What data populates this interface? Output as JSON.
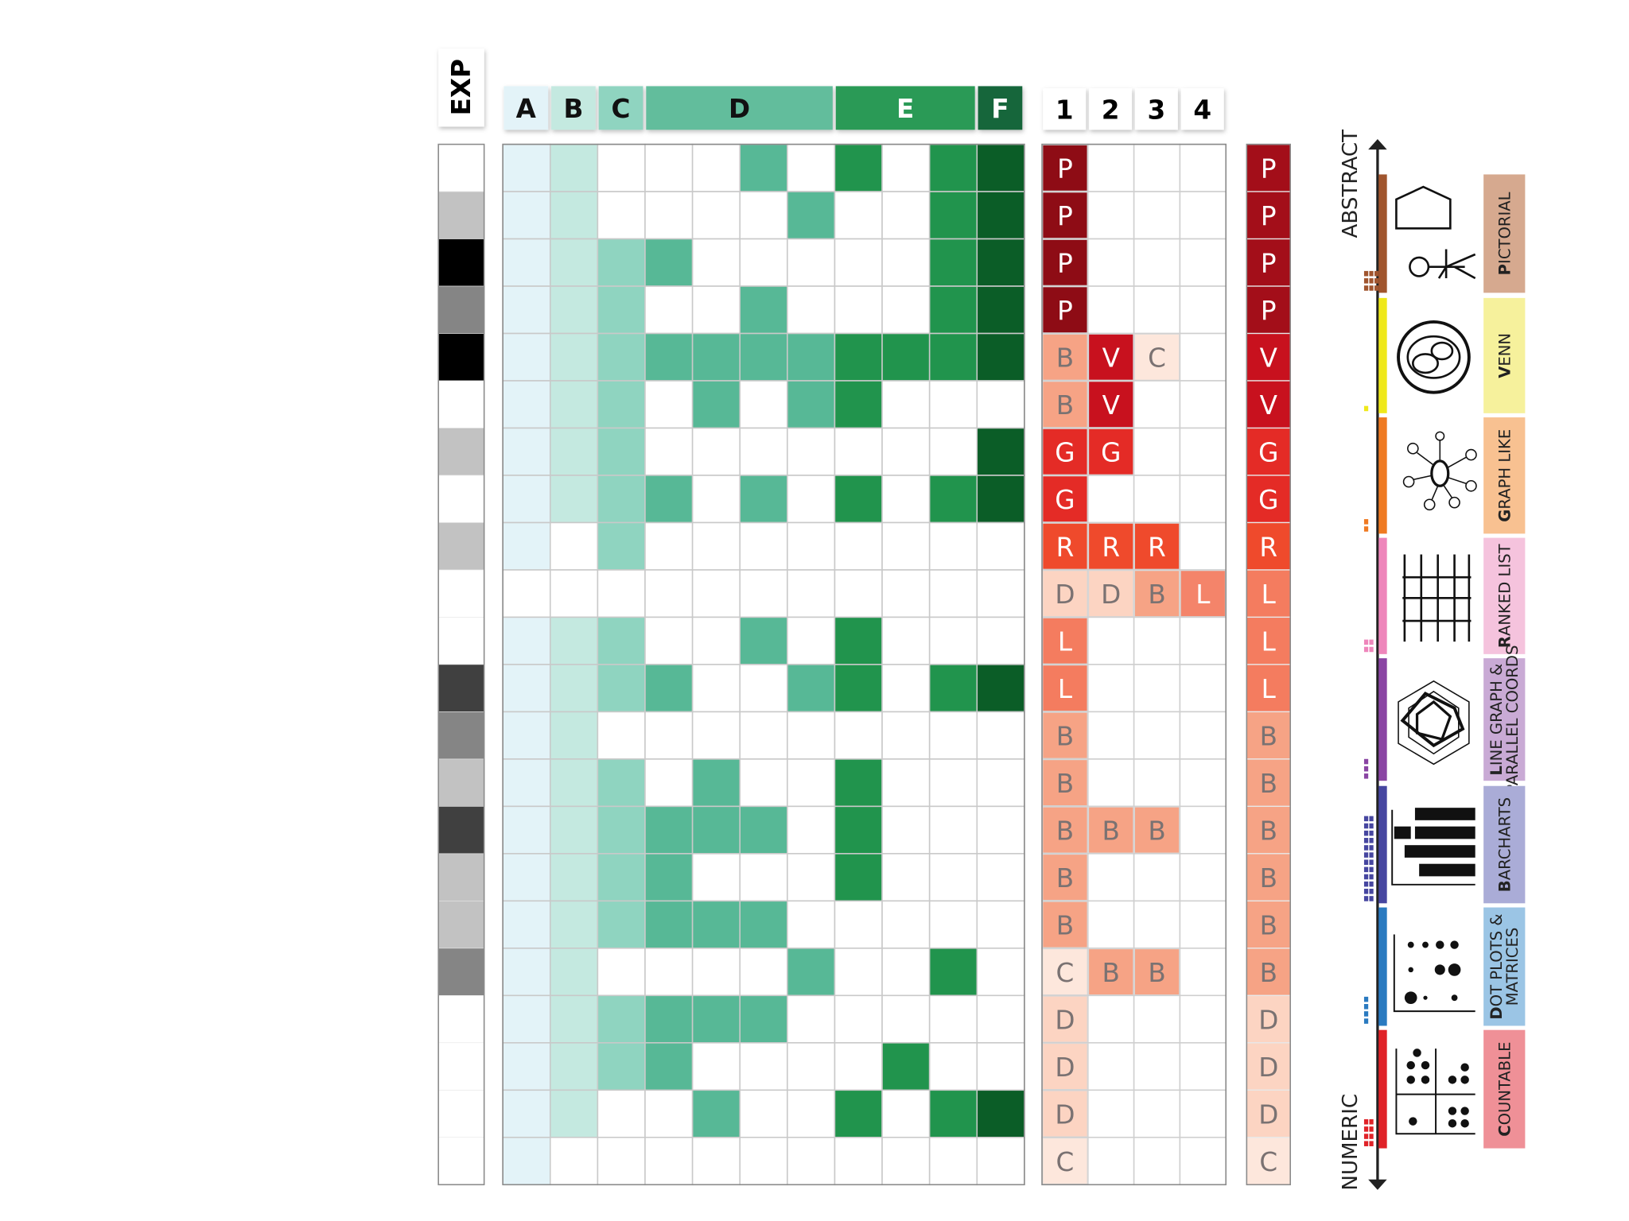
{
  "headers": {
    "exp": "EXP",
    "groups": [
      "A",
      "B",
      "C",
      "D",
      "E",
      "F"
    ],
    "codes": [
      "1",
      "2",
      "3",
      "4"
    ]
  },
  "rows": [
    {
      "exp": "#ffffff",
      "cells": [
        1,
        1,
        0,
        0,
        0,
        1,
        0,
        1,
        0,
        1,
        1
      ],
      "codes": [
        "P"
      ],
      "final": "P"
    },
    {
      "exp": "#c2c2c2",
      "cells": [
        1,
        1,
        0,
        0,
        0,
        0,
        1,
        0,
        0,
        1,
        1
      ],
      "codes": [
        "P"
      ],
      "final": "P"
    },
    {
      "exp": "#000000",
      "cells": [
        1,
        1,
        1,
        1,
        0,
        0,
        0,
        0,
        0,
        1,
        1
      ],
      "codes": [
        "P"
      ],
      "final": "P"
    },
    {
      "exp": "#858585",
      "cells": [
        1,
        1,
        1,
        0,
        0,
        1,
        0,
        0,
        0,
        1,
        1
      ],
      "codes": [
        "P"
      ],
      "final": "P"
    },
    {
      "exp": "#000000",
      "cells": [
        1,
        1,
        1,
        1,
        1,
        1,
        1,
        1,
        1,
        1,
        1
      ],
      "codes": [
        "B",
        "V",
        "C"
      ],
      "final": "V"
    },
    {
      "exp": "#ffffff",
      "cells": [
        1,
        1,
        1,
        0,
        1,
        0,
        1,
        1,
        0,
        0,
        0
      ],
      "codes": [
        "B",
        "V"
      ],
      "final": "V"
    },
    {
      "exp": "#c2c2c2",
      "cells": [
        1,
        1,
        1,
        0,
        0,
        0,
        0,
        0,
        0,
        0,
        1
      ],
      "codes": [
        "G",
        "G"
      ],
      "final": "G"
    },
    {
      "exp": "#ffffff",
      "cells": [
        1,
        1,
        1,
        1,
        0,
        1,
        0,
        1,
        0,
        1,
        1
      ],
      "codes": [
        "G"
      ],
      "final": "G"
    },
    {
      "exp": "#c2c2c2",
      "cells": [
        1,
        0,
        1,
        0,
        0,
        0,
        0,
        0,
        0,
        0,
        0
      ],
      "codes": [
        "R",
        "R",
        "R"
      ],
      "final": "R"
    },
    {
      "exp": "#ffffff",
      "cells": [
        0,
        0,
        0,
        0,
        0,
        0,
        0,
        0,
        0,
        0,
        0
      ],
      "codes": [
        "D",
        "D",
        "B",
        "L"
      ],
      "final": "L"
    },
    {
      "exp": "#ffffff",
      "cells": [
        1,
        1,
        1,
        0,
        0,
        1,
        0,
        1,
        0,
        0,
        0
      ],
      "codes": [
        "L"
      ],
      "final": "L"
    },
    {
      "exp": "#404040",
      "cells": [
        1,
        1,
        1,
        1,
        0,
        0,
        1,
        1,
        0,
        1,
        1
      ],
      "codes": [
        "L"
      ],
      "final": "L"
    },
    {
      "exp": "#858585",
      "cells": [
        1,
        1,
        0,
        0,
        0,
        0,
        0,
        0,
        0,
        0,
        0
      ],
      "codes": [
        "B"
      ],
      "final": "B"
    },
    {
      "exp": "#c2c2c2",
      "cells": [
        1,
        1,
        1,
        0,
        1,
        0,
        0,
        1,
        0,
        0,
        0
      ],
      "codes": [
        "B"
      ],
      "final": "B"
    },
    {
      "exp": "#404040",
      "cells": [
        1,
        1,
        1,
        1,
        1,
        1,
        0,
        1,
        0,
        0,
        0
      ],
      "codes": [
        "B",
        "B",
        "B"
      ],
      "final": "B"
    },
    {
      "exp": "#c2c2c2",
      "cells": [
        1,
        1,
        1,
        1,
        0,
        0,
        0,
        1,
        0,
        0,
        0
      ],
      "codes": [
        "B"
      ],
      "final": "B"
    },
    {
      "exp": "#c2c2c2",
      "cells": [
        1,
        1,
        1,
        1,
        1,
        1,
        0,
        0,
        0,
        0,
        0
      ],
      "codes": [
        "B"
      ],
      "final": "B"
    },
    {
      "exp": "#858585",
      "cells": [
        1,
        1,
        0,
        0,
        0,
        0,
        1,
        0,
        0,
        1,
        0
      ],
      "codes": [
        "C",
        "B",
        "B"
      ],
      "final": "B"
    },
    {
      "exp": "#ffffff",
      "cells": [
        1,
        1,
        1,
        1,
        1,
        1,
        0,
        0,
        0,
        0,
        0
      ],
      "codes": [
        "D"
      ],
      "final": "D"
    },
    {
      "exp": "#ffffff",
      "cells": [
        1,
        1,
        1,
        1,
        0,
        0,
        0,
        0,
        1,
        0,
        0
      ],
      "codes": [
        "D"
      ],
      "final": "D"
    },
    {
      "exp": "#ffffff",
      "cells": [
        1,
        1,
        0,
        0,
        1,
        0,
        0,
        1,
        0,
        1,
        1
      ],
      "codes": [
        "D"
      ],
      "final": "D"
    },
    {
      "exp": "#ffffff",
      "cells": [
        1,
        0,
        0,
        0,
        0,
        0,
        0,
        0,
        0,
        0,
        0
      ],
      "codes": [
        "C"
      ],
      "final": "C"
    }
  ],
  "legend": {
    "top": "ABSTRACT",
    "bottom": "NUMERIC",
    "categories": [
      {
        "lines": [
          "PICTORIAL"
        ],
        "color": "#d6a98f",
        "bar": "#a0552e"
      },
      {
        "lines": [
          "VENN"
        ],
        "color": "#f6f19c",
        "bar": "#efe81a"
      },
      {
        "lines": [
          "GRAPH LIKE"
        ],
        "color": "#f8c191",
        "bar": "#ef7a22"
      },
      {
        "lines": [
          "RANKED LIST"
        ],
        "color": "#f5c3dd",
        "bar": "#ee86bb"
      },
      {
        "lines": [
          "LINE GRAPH &",
          "PARALLEL COORDS"
        ],
        "color": "#c9aad5",
        "bar": "#8a45a3"
      },
      {
        "lines": [
          "BARCHARTS"
        ],
        "color": "#aaacd7",
        "bar": "#4646a0"
      },
      {
        "lines": [
          "DOT PLOTS &",
          "MATRICES"
        ],
        "color": "#9bc5e5",
        "bar": "#2a7ac0"
      },
      {
        "lines": [
          "COUNTABLE"
        ],
        "color": "#ef9097",
        "bar": "#e02228"
      }
    ]
  }
}
